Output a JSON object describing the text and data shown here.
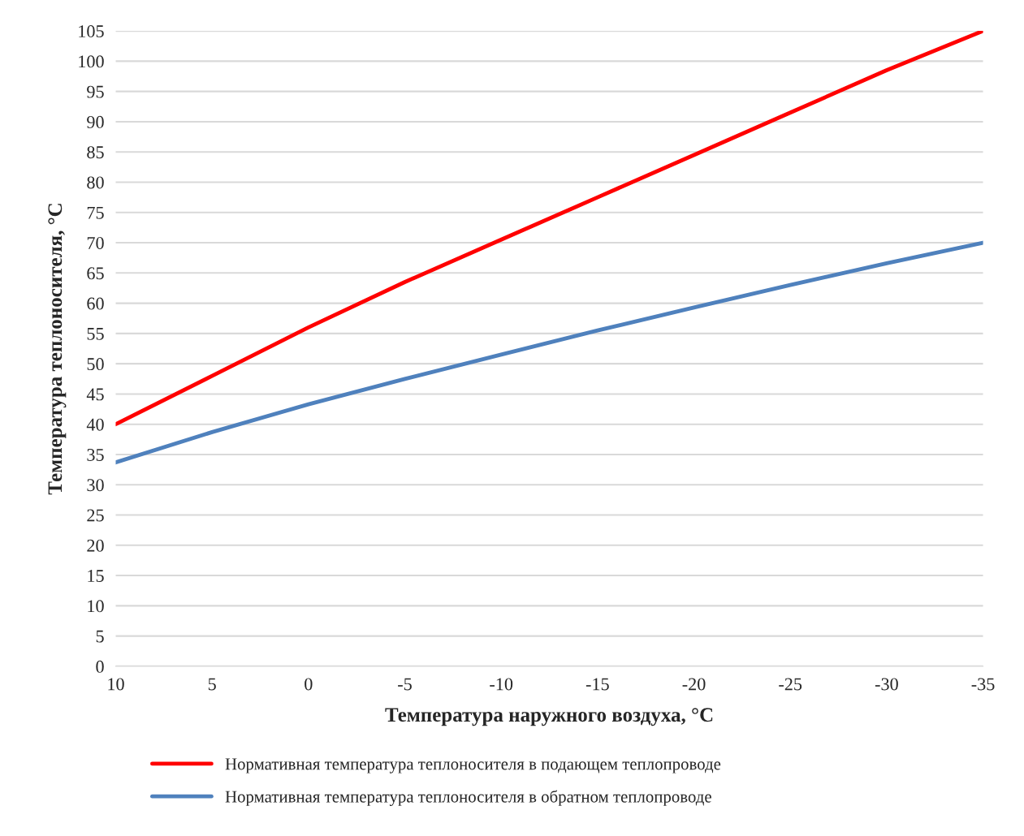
{
  "chart_data": {
    "type": "line",
    "xlabel": "Температура наружного воздуха, °C",
    "ylabel": "Температура теплоносителя, °C",
    "x": [
      10,
      5,
      0,
      -5,
      -10,
      -15,
      -20,
      -25,
      -30,
      -35
    ],
    "series": [
      {
        "name": "Нормативная температура теплоносителя в подающем теплопроводе",
        "color": "#ff0000",
        "values": [
          40,
          48,
          56,
          63.5,
          70.5,
          77.5,
          84.5,
          91.5,
          98.5,
          105
        ]
      },
      {
        "name": "Нормативная температура теплоносителя в обратном теплопроводе",
        "color": "#4f81bd",
        "values": [
          33.7,
          38.7,
          43.3,
          47.5,
          51.5,
          55.5,
          59.3,
          63,
          66.6,
          70
        ]
      }
    ],
    "xlim": [
      10,
      -35
    ],
    "xticks": [
      10,
      5,
      0,
      -5,
      -10,
      -15,
      -20,
      -25,
      -30,
      -35
    ],
    "ylim": [
      0,
      105
    ],
    "yticks": [
      0,
      5,
      10,
      15,
      20,
      25,
      30,
      35,
      40,
      45,
      50,
      55,
      60,
      65,
      70,
      75,
      80,
      85,
      90,
      95,
      100,
      105
    ],
    "grid": "y",
    "legend": "bottom",
    "marker": "none",
    "line_style": "solid"
  }
}
